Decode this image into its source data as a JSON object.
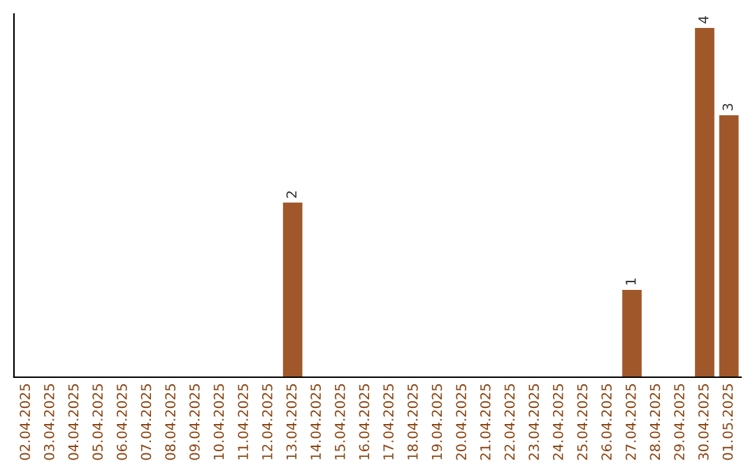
{
  "chart_data": {
    "type": "bar",
    "categories": [
      "02.04.2025",
      "03.04.2025",
      "04.04.2025",
      "05.04.2025",
      "06.04.2025",
      "07.04.2025",
      "08.04.2025",
      "09.04.2025",
      "10.04.2025",
      "11.04.2025",
      "12.04.2025",
      "13.04.2025",
      "14.04.2025",
      "15.04.2025",
      "16.04.2025",
      "17.04.2025",
      "18.04.2025",
      "19.04.2025",
      "20.04.2025",
      "21.04.2025",
      "22.04.2025",
      "23.04.2025",
      "24.04.2025",
      "25.04.2025",
      "26.04.2025",
      "27.04.2025",
      "28.04.2025",
      "29.04.2025",
      "30.04.2025",
      "01.05.2025"
    ],
    "values": [
      0,
      0,
      0,
      0,
      0,
      0,
      0,
      0,
      0,
      0,
      0,
      2,
      0,
      0,
      0,
      0,
      0,
      0,
      0,
      0,
      0,
      0,
      0,
      0,
      0,
      1,
      0,
      0,
      4,
      3
    ],
    "value_labels": [
      null,
      null,
      null,
      null,
      null,
      null,
      null,
      null,
      null,
      null,
      null,
      "2",
      null,
      null,
      null,
      null,
      null,
      null,
      null,
      null,
      null,
      null,
      null,
      null,
      null,
      "1",
      null,
      null,
      "4",
      "3"
    ],
    "color": "#a0582a",
    "tick_labels": "x",
    "grid": false,
    "legend": false
  }
}
